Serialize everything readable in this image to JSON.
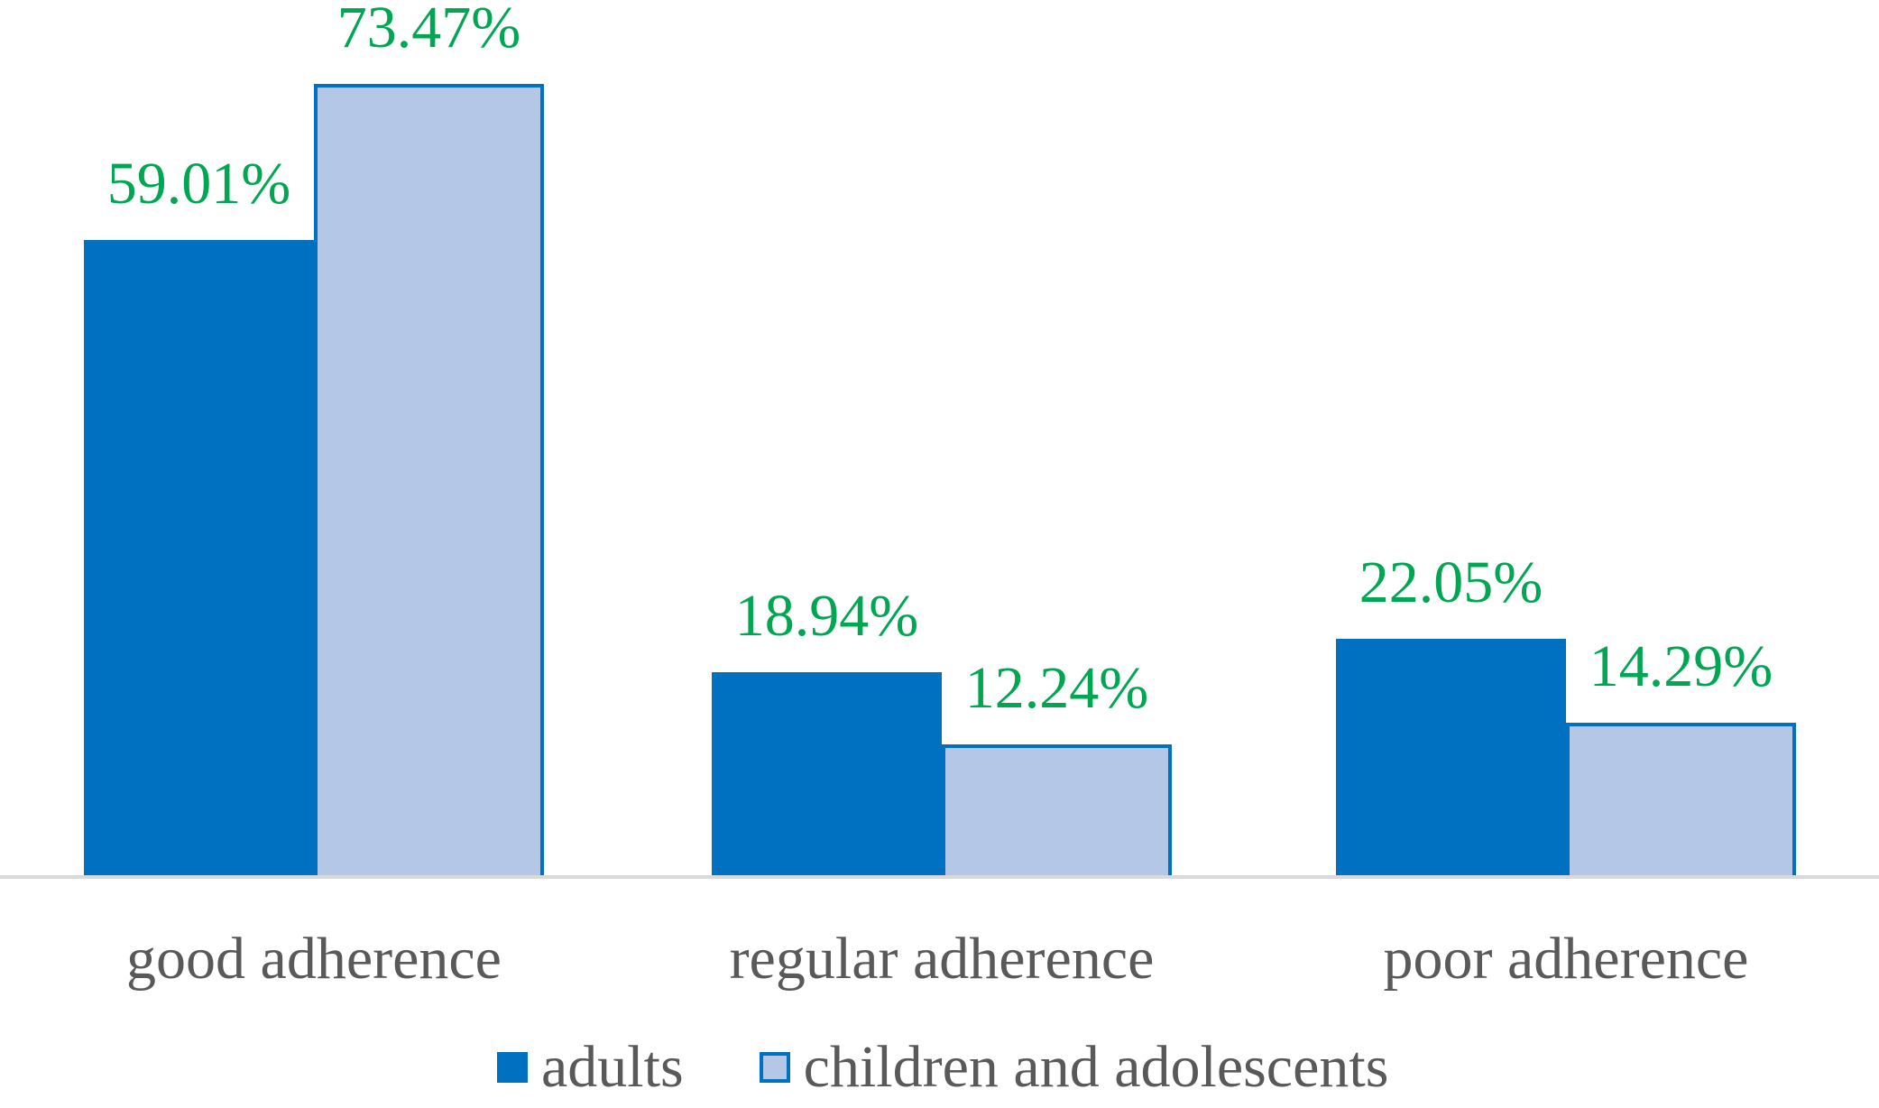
{
  "chart_data": {
    "type": "bar",
    "categories": [
      "good adherence",
      "regular adherence",
      "poor adherence"
    ],
    "series": [
      {
        "name": "adults",
        "values": [
          59.01,
          18.94,
          22.05
        ],
        "labels": [
          "59.01%",
          "18.94%",
          "22.05%"
        ],
        "fill": "#0070C0",
        "border": null
      },
      {
        "name": "children and adolescents",
        "values": [
          73.47,
          12.24,
          14.29
        ],
        "labels": [
          "73.47%",
          "12.24%",
          "14.29%"
        ],
        "fill": "#B4C7E7",
        "border": "#0070C0"
      }
    ],
    "title": "",
    "xlabel": "",
    "ylabel": "",
    "ylim": [
      0,
      81
    ],
    "grid": false,
    "y_axis_visible": false,
    "legend_position": "bottom",
    "colors": {
      "value_label": "#00A651",
      "axis_text": "#595959",
      "axis_line": "#D9D9D9",
      "background": "#FFFFFF"
    }
  }
}
